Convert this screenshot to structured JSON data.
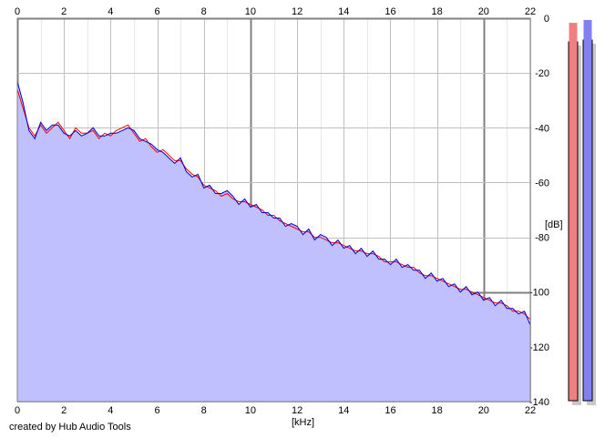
{
  "footer": {
    "credit": "created by Hub Audio Tools"
  },
  "colors": {
    "area_fill": "#c0c0ff",
    "channel_left": "#ff0000",
    "channel_right": "#0000cc",
    "grid": "#c0c0c0",
    "grid_major": "#808080",
    "meter_left": "#f08080",
    "meter_right": "#8080f0"
  },
  "meters": {
    "left": {
      "level_db": -8
    },
    "right": {
      "level_db": -7
    }
  },
  "chart_data": {
    "type": "line",
    "xlabel": "[kHz]",
    "ylabel": "[dB]",
    "xlim": [
      0,
      22
    ],
    "ylim": [
      -140,
      0
    ],
    "x_ticks": [
      "0",
      "2",
      "4",
      "6",
      "8",
      "10",
      "12",
      "14",
      "16",
      "18",
      "20",
      "22"
    ],
    "y_ticks": [
      "0",
      "-20",
      "-40",
      "-60",
      "-80",
      "-100",
      "-120",
      "-140"
    ],
    "grid": true,
    "series": [
      {
        "color": "#ff0000",
        "fill": false,
        "x": [
          0,
          0.25,
          0.5,
          0.75,
          1,
          1.25,
          1.5,
          1.75,
          2,
          2.25,
          2.5,
          2.75,
          3,
          3.25,
          3.5,
          3.75,
          4,
          4.25,
          4.5,
          4.75,
          5,
          5.25,
          5.5,
          5.75,
          6,
          6.25,
          6.5,
          6.75,
          7,
          7.25,
          7.5,
          7.75,
          8,
          8.25,
          8.5,
          8.75,
          9,
          9.25,
          9.5,
          9.75,
          10,
          10.25,
          10.5,
          10.75,
          11,
          11.25,
          11.5,
          11.75,
          12,
          12.25,
          12.5,
          12.75,
          13,
          13.25,
          13.5,
          13.75,
          14,
          14.25,
          14.5,
          14.75,
          15,
          15.25,
          15.5,
          15.75,
          16,
          16.25,
          16.5,
          16.75,
          17,
          17.25,
          17.5,
          17.75,
          18,
          18.25,
          18.5,
          18.75,
          19,
          19.25,
          19.5,
          19.75,
          20,
          20.25,
          20.5,
          20.75,
          21,
          21.25,
          21.5,
          21.75,
          22
        ],
        "values": [
          -26,
          -33,
          -40,
          -43,
          -39,
          -42,
          -40,
          -38,
          -41,
          -44,
          -40,
          -42,
          -42,
          -41,
          -44,
          -42,
          -43,
          -41,
          -40,
          -39,
          -42,
          -45,
          -44,
          -47,
          -49,
          -48,
          -50,
          -52,
          -52,
          -55,
          -57,
          -58,
          -61,
          -62,
          -63,
          -65,
          -64,
          -66,
          -67,
          -67,
          -68,
          -69,
          -70,
          -72,
          -72,
          -74,
          -75,
          -76,
          -77,
          -78,
          -78,
          -80,
          -80,
          -81,
          -82,
          -82,
          -83,
          -84,
          -85,
          -85,
          -86,
          -86,
          -87,
          -89,
          -89,
          -89,
          -90,
          -91,
          -91,
          -93,
          -94,
          -94,
          -95,
          -96,
          -97,
          -98,
          -99,
          -99,
          -100,
          -101,
          -102,
          -103,
          -104,
          -104,
          -105,
          -107,
          -107,
          -108,
          -110
        ]
      },
      {
        "color": "#0000cc",
        "fill": true,
        "x": [
          0,
          0.25,
          0.5,
          0.75,
          1,
          1.25,
          1.5,
          1.75,
          2,
          2.25,
          2.5,
          2.75,
          3,
          3.25,
          3.5,
          3.75,
          4,
          4.25,
          4.5,
          4.75,
          5,
          5.25,
          5.5,
          5.75,
          6,
          6.25,
          6.5,
          6.75,
          7,
          7.25,
          7.5,
          7.75,
          8,
          8.25,
          8.5,
          8.75,
          9,
          9.25,
          9.5,
          9.75,
          10,
          10.25,
          10.5,
          10.75,
          11,
          11.25,
          11.5,
          11.75,
          12,
          12.25,
          12.5,
          12.75,
          13,
          13.25,
          13.5,
          13.75,
          14,
          14.25,
          14.5,
          14.75,
          15,
          15.25,
          15.5,
          15.75,
          16,
          16.25,
          16.5,
          16.75,
          17,
          17.25,
          17.5,
          17.75,
          18,
          18.25,
          18.5,
          18.75,
          19,
          19.25,
          19.5,
          19.75,
          20,
          20.25,
          20.5,
          20.75,
          21,
          21.25,
          21.5,
          21.75,
          22
        ],
        "values": [
          -23,
          -31,
          -41,
          -44,
          -38,
          -41,
          -39,
          -39,
          -42,
          -43,
          -41,
          -43,
          -42,
          -40,
          -43,
          -43,
          -42,
          -42,
          -41,
          -40,
          -41,
          -44,
          -45,
          -46,
          -48,
          -49,
          -51,
          -53,
          -51,
          -56,
          -58,
          -57,
          -62,
          -61,
          -64,
          -64,
          -63,
          -65,
          -68,
          -66,
          -69,
          -68,
          -71,
          -71,
          -73,
          -73,
          -76,
          -75,
          -76,
          -79,
          -77,
          -81,
          -79,
          -80,
          -83,
          -81,
          -84,
          -83,
          -86,
          -84,
          -87,
          -85,
          -88,
          -88,
          -90,
          -88,
          -91,
          -90,
          -92,
          -92,
          -95,
          -93,
          -96,
          -95,
          -98,
          -97,
          -100,
          -98,
          -101,
          -100,
          -103,
          -102,
          -105,
          -103,
          -106,
          -106,
          -108,
          -107,
          -112
        ]
      }
    ]
  }
}
